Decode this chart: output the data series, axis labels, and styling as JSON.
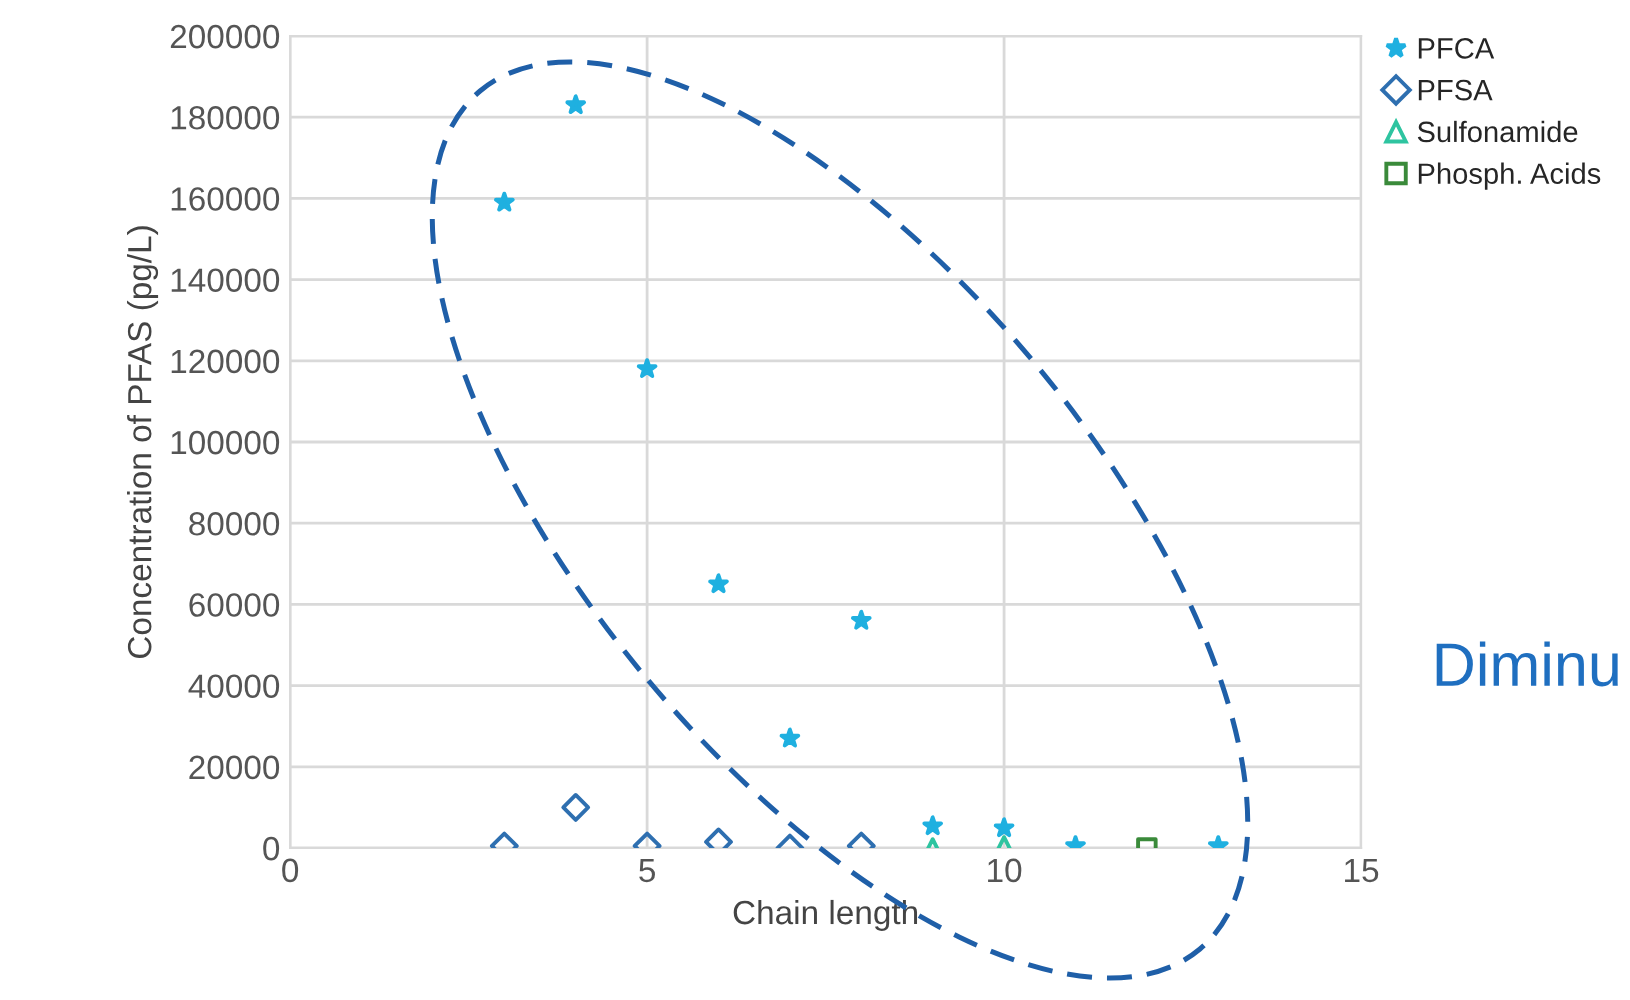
{
  "chart_data": {
    "type": "scatter",
    "xlabel": "Chain length",
    "ylabel": "Concentration of PFAS (pg/L)",
    "xlim": [
      0,
      15
    ],
    "xticks": [
      0,
      5,
      10,
      15
    ],
    "ylim": [
      0,
      200000
    ],
    "yticks": [
      0,
      20000,
      40000,
      60000,
      80000,
      100000,
      120000,
      140000,
      160000,
      180000,
      200000
    ],
    "grid": true,
    "legend": "top right",
    "annotations": [
      "Diminu"
    ],
    "series": [
      {
        "name": "PFCA",
        "color": "#1fb0e0",
        "marker": "star",
        "x": [
          3,
          4,
          5,
          6,
          7,
          8,
          9,
          10,
          11,
          13
        ],
        "values": [
          159000,
          183000,
          118000,
          65000,
          27000,
          56000,
          5400,
          4900,
          500,
          500
        ]
      },
      {
        "name": "PFSA",
        "color": "#2e6fb0",
        "marker": "diamond",
        "x": [
          3,
          4,
          5,
          6,
          7,
          8
        ],
        "values": [
          500,
          10000,
          500,
          1500,
          0,
          500
        ]
      },
      {
        "name": "Sulfonamide",
        "color": "#2ec4a0",
        "marker": "triangle",
        "x": [
          9,
          10
        ],
        "values": [
          0,
          500
        ]
      },
      {
        "name": "Phosph. Acids",
        "color": "#3a8a3a",
        "marker": "square",
        "x": [
          12
        ],
        "values": [
          0
        ]
      }
    ]
  }
}
